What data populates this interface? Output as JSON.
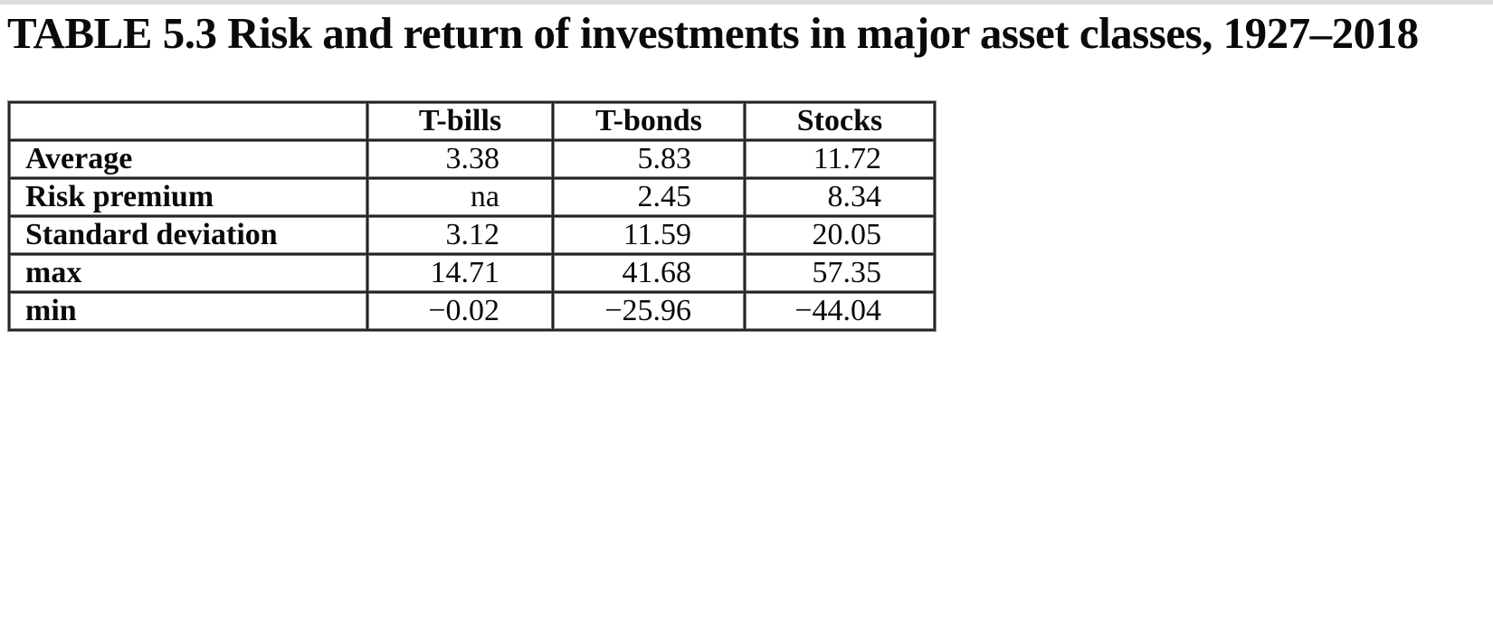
{
  "page": {
    "background_color": "#ffffff",
    "top_strip_color": "#dcdcda"
  },
  "title": "TABLE 5.3 Risk and return of investments in major asset classes, 1927–2018",
  "table": {
    "columns": [
      "",
      "T-bills",
      "T-bonds",
      "Stocks"
    ],
    "rows": [
      {
        "label": "Average",
        "values": [
          "3.38",
          "5.83",
          "11.72"
        ]
      },
      {
        "label": "Risk premium",
        "values": [
          "na",
          "2.45",
          "8.34"
        ]
      },
      {
        "label": "Standard deviation",
        "values": [
          "3.12",
          "11.59",
          "20.05"
        ]
      },
      {
        "label": "max",
        "values": [
          "14.71",
          "41.68",
          "57.35"
        ]
      },
      {
        "label": "min",
        "values": [
          "−0.02",
          "−25.96",
          "−44.04"
        ]
      }
    ],
    "grid_dark_color": "#242424",
    "grid_gray_color": "#7a7a7a",
    "text_color": "#0a0a0a"
  },
  "chart_data": {
    "type": "table",
    "title": "TABLE 5.3 Risk and return of investments in major asset classes, 1927–2018",
    "categories": [
      "T-bills",
      "T-bonds",
      "Stocks"
    ],
    "series": [
      {
        "name": "Average",
        "values": [
          3.38,
          5.83,
          11.72
        ]
      },
      {
        "name": "Risk premium",
        "values": [
          null,
          2.45,
          8.34
        ]
      },
      {
        "name": "Standard deviation",
        "values": [
          3.12,
          11.59,
          20.05
        ]
      },
      {
        "name": "max",
        "values": [
          14.71,
          41.68,
          57.35
        ]
      },
      {
        "name": "min",
        "values": [
          -0.02,
          -25.96,
          -44.04
        ]
      }
    ]
  }
}
